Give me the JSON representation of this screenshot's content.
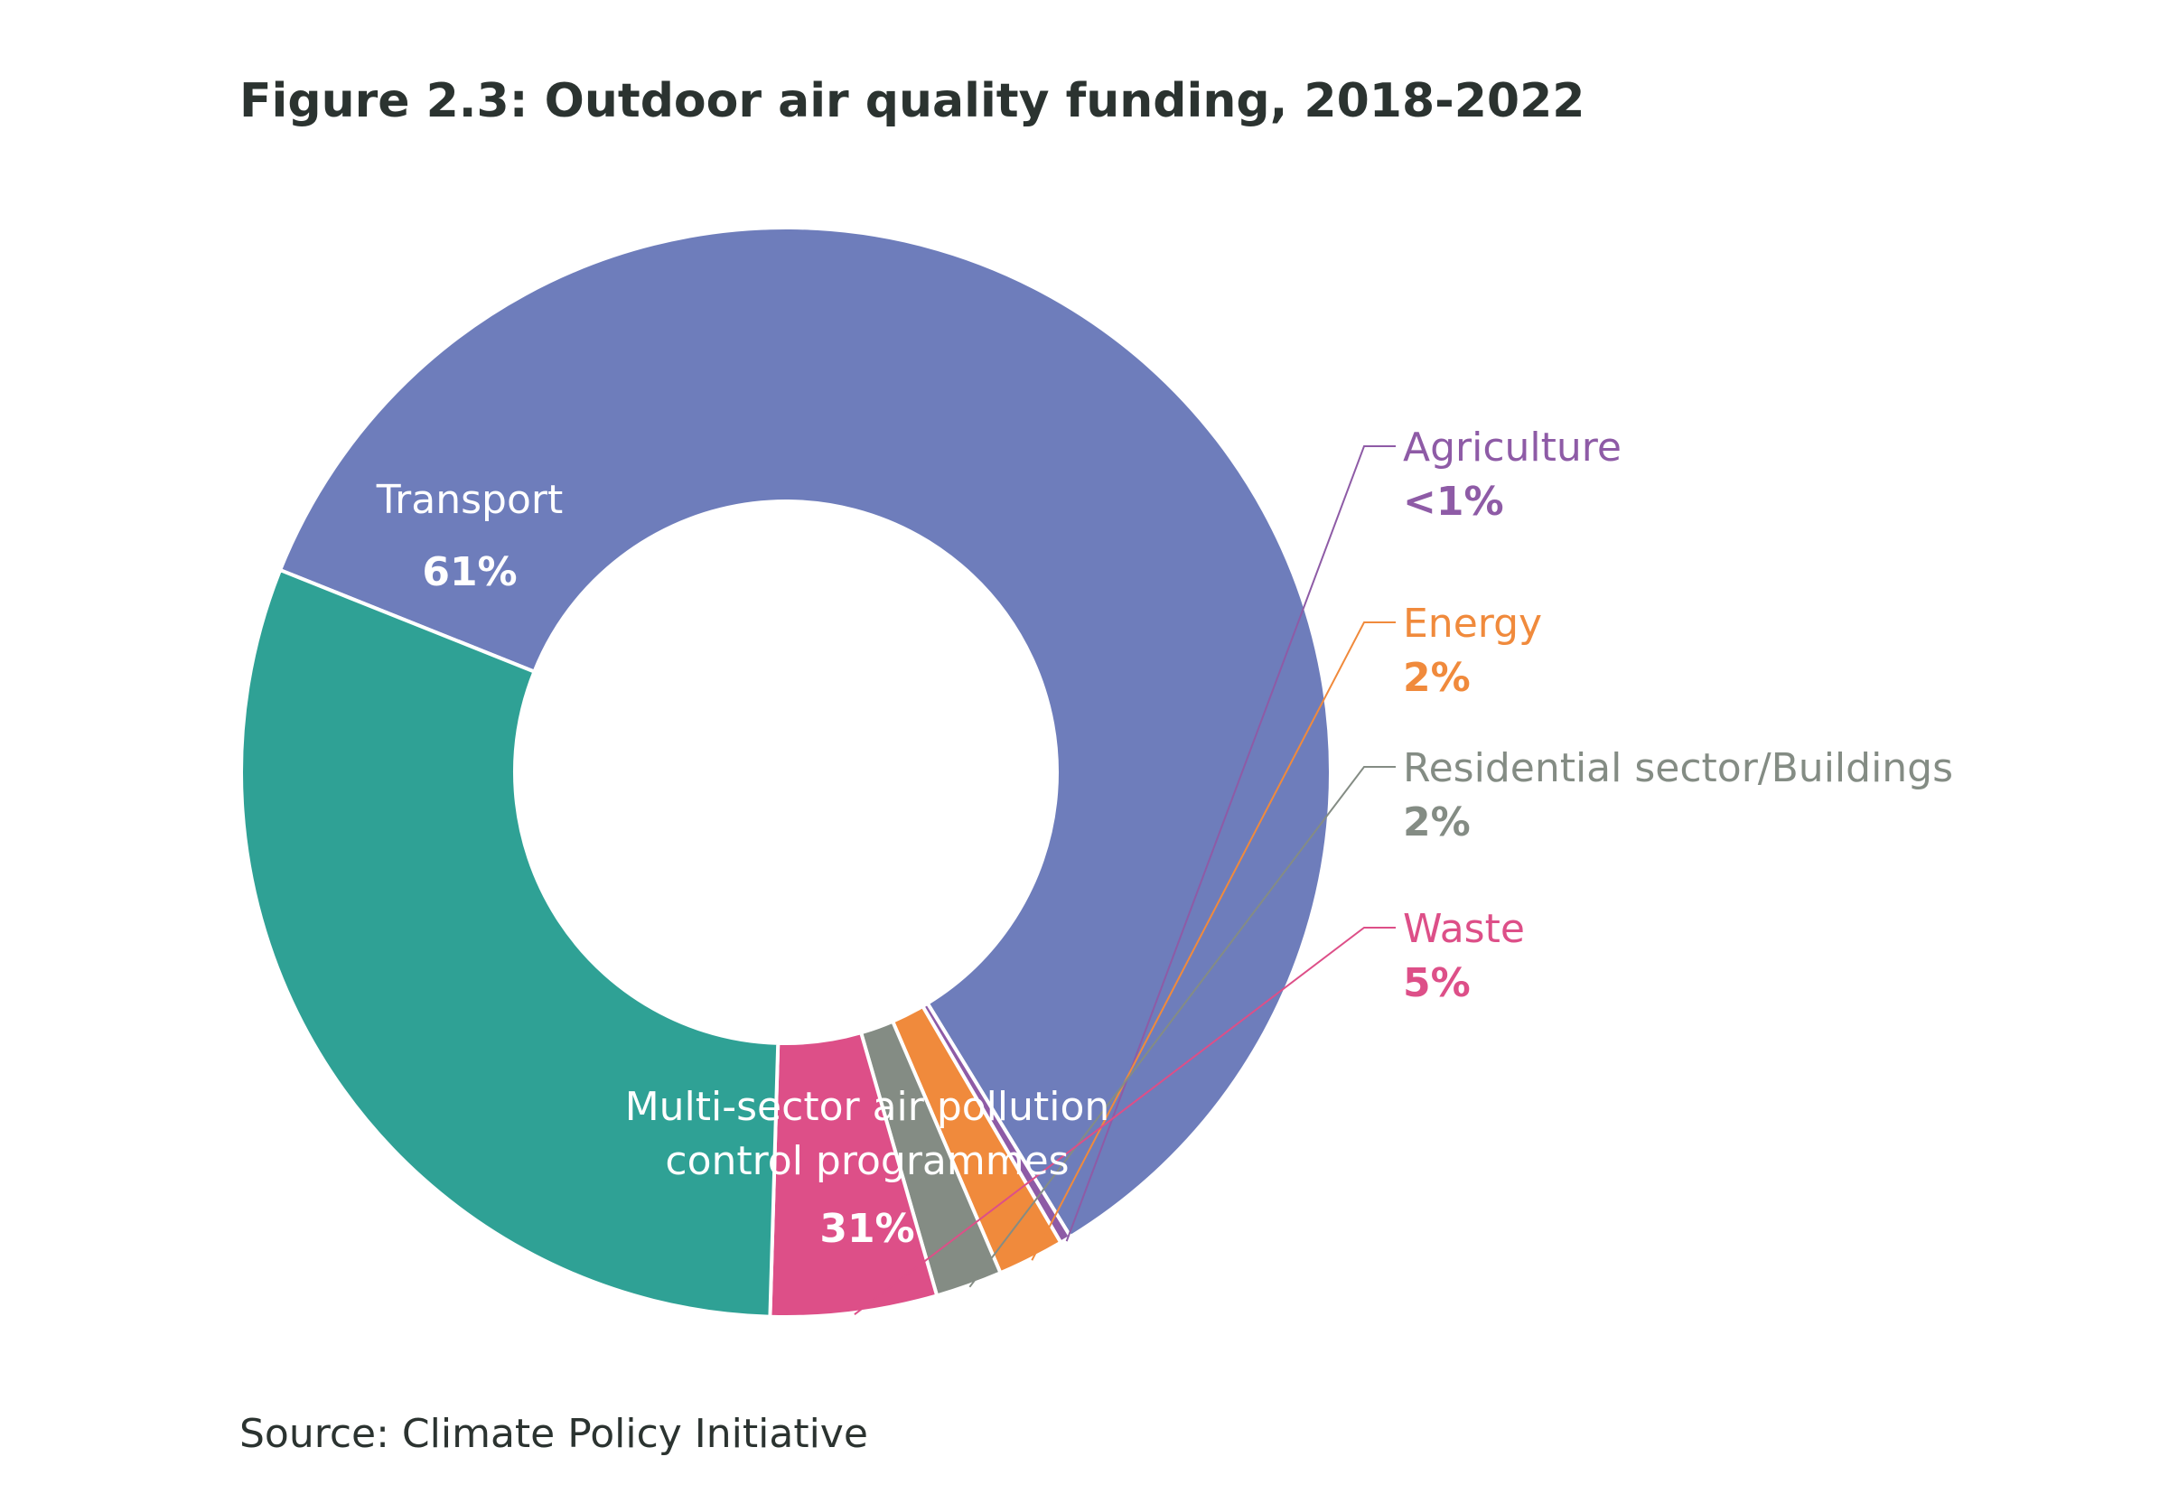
{
  "title": "Figure 2.3: Outdoor air quality funding, 2018-2022",
  "source": "Source: Climate Policy Initiative",
  "chart_data": {
    "type": "pie",
    "donut": true,
    "title": "Figure 2.3: Outdoor air quality funding, 2018-2022",
    "slices": [
      {
        "label": "Transport",
        "value": 61,
        "display": "61%",
        "color": "#6e7dbb",
        "label_position": "inside"
      },
      {
        "label": "Agriculture",
        "value": 0.1,
        "display": "<1%",
        "color": "#8e5ba6",
        "label_position": "outside"
      },
      {
        "label": "Energy",
        "value": 2,
        "display": "2%",
        "color": "#f08a3c",
        "label_position": "outside"
      },
      {
        "label": "Residential sector/Buildings",
        "value": 2,
        "display": "2%",
        "color": "#848c84",
        "label_position": "outside"
      },
      {
        "label": "Waste",
        "value": 5,
        "display": "5%",
        "color": "#dd4f88",
        "label_position": "outside"
      },
      {
        "label": "Multi-sector air pollution control programmes",
        "label_lines": [
          "Multi-sector air pollution",
          "control programmes"
        ],
        "value": 31,
        "display": "31%",
        "color": "#2fa195",
        "label_position": "inside"
      }
    ]
  }
}
